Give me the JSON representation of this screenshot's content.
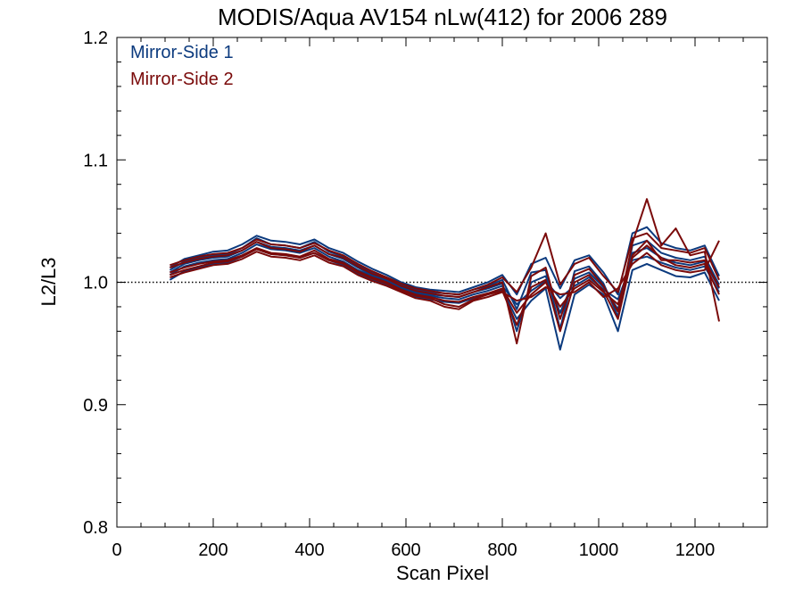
{
  "chart_data": {
    "type": "line",
    "title": "MODIS/Aqua AV154 nLw(412) for 2006 289",
    "xlabel": "Scan Pixel",
    "ylabel": "L2/L3",
    "xlim": [
      0,
      1350
    ],
    "ylim": [
      0.8,
      1.2
    ],
    "x_ticks": [
      0,
      200,
      400,
      600,
      800,
      1000,
      1200
    ],
    "x_tick_labels": [
      "0",
      "200",
      "400",
      "600",
      "800",
      "1000",
      "1200"
    ],
    "y_ticks": [
      0.8,
      0.9,
      1.0,
      1.1,
      1.2
    ],
    "y_tick_labels": [
      "0.8",
      "0.9",
      "1.0",
      "1.1",
      "1.2"
    ],
    "reference_line": 1.0,
    "grid": false,
    "legend_position": "top-left",
    "colors": {
      "mirror_side_1": "#0b3a7e",
      "mirror_side_2": "#7a0a0a"
    },
    "x": [
      110,
      140,
      170,
      200,
      230,
      260,
      290,
      320,
      350,
      380,
      410,
      440,
      470,
      500,
      530,
      560,
      590,
      620,
      650,
      680,
      710,
      740,
      770,
      800,
      830,
      860,
      890,
      920,
      950,
      980,
      1010,
      1040,
      1070,
      1100,
      1130,
      1160,
      1190,
      1220,
      1250
    ],
    "series": [
      {
        "name": "Mirror-Side 1",
        "side": 1,
        "values": [
          1.006,
          1.013,
          1.016,
          1.018,
          1.019,
          1.024,
          1.031,
          1.027,
          1.026,
          1.024,
          1.028,
          1.021,
          1.017,
          1.01,
          1.005,
          1.001,
          0.995,
          0.991,
          0.989,
          0.987,
          0.986,
          0.99,
          0.993,
          0.997,
          0.982,
          0.993,
          1.001,
          0.987,
          0.997,
          1.004,
          0.994,
          0.986,
          1.018,
          1.021,
          1.016,
          1.012,
          1.01,
          1.013,
          0.992
        ]
      },
      {
        "name": "Mirror-Side 1",
        "side": 1,
        "values": [
          1.01,
          1.017,
          1.02,
          1.022,
          1.023,
          1.028,
          1.036,
          1.031,
          1.03,
          1.028,
          1.033,
          1.025,
          1.021,
          1.014,
          1.008,
          1.004,
          0.998,
          0.994,
          0.992,
          0.991,
          0.99,
          0.994,
          0.997,
          1.002,
          0.978,
          1.008,
          1.01,
          0.962,
          1.009,
          1.013,
          0.999,
          0.972,
          1.03,
          1.034,
          1.024,
          1.02,
          1.018,
          1.021,
          0.998
        ]
      },
      {
        "name": "Mirror-Side 1",
        "side": 1,
        "values": [
          1.002,
          1.009,
          1.012,
          1.015,
          1.016,
          1.021,
          1.027,
          1.023,
          1.022,
          1.02,
          1.024,
          1.018,
          1.014,
          1.007,
          1.002,
          0.998,
          0.993,
          0.988,
          0.986,
          0.984,
          0.983,
          0.987,
          0.99,
          0.994,
          0.97,
          0.985,
          0.995,
          0.945,
          0.99,
          0.998,
          0.99,
          0.96,
          1.01,
          1.015,
          1.01,
          1.005,
          1.004,
          1.008,
          0.985
        ]
      },
      {
        "name": "Mirror-Side 1",
        "side": 1,
        "values": [
          1.012,
          1.019,
          1.022,
          1.025,
          1.026,
          1.031,
          1.038,
          1.034,
          1.033,
          1.031,
          1.035,
          1.028,
          1.024,
          1.017,
          1.011,
          1.006,
          1.0,
          0.996,
          0.994,
          0.993,
          0.992,
          0.996,
          1.0,
          1.006,
          0.99,
          1.015,
          1.02,
          0.995,
          1.018,
          1.022,
          1.008,
          0.99,
          1.04,
          1.045,
          1.032,
          1.028,
          1.026,
          1.03,
          1.005
        ]
      },
      {
        "name": "Mirror-Side 1",
        "side": 1,
        "values": [
          1.008,
          1.015,
          1.018,
          1.02,
          1.021,
          1.026,
          1.033,
          1.029,
          1.028,
          1.026,
          1.03,
          1.023,
          1.019,
          1.012,
          1.006,
          1.002,
          0.996,
          0.992,
          0.99,
          0.989,
          0.988,
          0.992,
          0.995,
          0.999,
          0.96,
          1.0,
          1.005,
          0.975,
          1.003,
          1.008,
          0.996,
          0.978,
          1.024,
          1.028,
          1.02,
          1.016,
          1.014,
          1.017,
          0.995
        ]
      },
      {
        "name": "Mirror-Side 2",
        "side": 2,
        "values": [
          1.008,
          1.012,
          1.015,
          1.017,
          1.018,
          1.022,
          1.028,
          1.024,
          1.023,
          1.021,
          1.026,
          1.019,
          1.016,
          1.009,
          1.004,
          1.0,
          0.994,
          0.99,
          0.988,
          0.985,
          0.984,
          0.988,
          0.991,
          0.995,
          0.975,
          0.99,
          1.0,
          0.98,
          0.995,
          1.002,
          0.992,
          0.982,
          1.02,
          1.03,
          1.02,
          1.014,
          1.012,
          1.015,
          0.99
        ]
      },
      {
        "name": "Mirror-Side 2",
        "side": 2,
        "values": [
          1.012,
          1.016,
          1.019,
          1.021,
          1.022,
          1.026,
          1.033,
          1.028,
          1.027,
          1.025,
          1.03,
          1.023,
          1.02,
          1.013,
          1.007,
          1.003,
          0.997,
          0.993,
          0.991,
          0.989,
          0.988,
          0.992,
          0.996,
          1.0,
          0.95,
          1.005,
          1.012,
          0.97,
          1.006,
          1.011,
          0.997,
          0.976,
          1.032,
          1.068,
          1.03,
          1.044,
          1.022,
          1.025,
          0.968
        ]
      },
      {
        "name": "Mirror-Side 2",
        "side": 2,
        "values": [
          1.004,
          1.008,
          1.011,
          1.014,
          1.015,
          1.019,
          1.025,
          1.021,
          1.02,
          1.018,
          1.022,
          1.016,
          1.013,
          1.006,
          1.001,
          0.997,
          0.992,
          0.987,
          0.985,
          0.98,
          0.978,
          0.985,
          0.988,
          0.992,
          0.985,
          0.988,
          0.996,
          0.99,
          0.992,
          1.0,
          0.988,
          0.995,
          1.015,
          1.024,
          1.014,
          1.01,
          1.008,
          1.01,
          1.034
        ]
      },
      {
        "name": "Mirror-Side 2",
        "side": 2,
        "values": [
          1.014,
          1.018,
          1.021,
          1.023,
          1.024,
          1.028,
          1.035,
          1.031,
          1.03,
          1.028,
          1.032,
          1.026,
          1.022,
          1.015,
          1.009,
          1.004,
          0.999,
          0.995,
          0.993,
          0.991,
          0.99,
          0.994,
          0.998,
          1.004,
          0.992,
          1.012,
          1.04,
          0.998,
          1.015,
          1.02,
          1.005,
          0.992,
          1.036,
          1.04,
          1.028,
          1.026,
          1.024,
          1.028,
          1.002
        ]
      },
      {
        "name": "Mirror-Side 2",
        "side": 2,
        "values": [
          1.006,
          1.01,
          1.013,
          1.016,
          1.017,
          1.021,
          1.027,
          1.023,
          1.022,
          1.02,
          1.024,
          1.018,
          1.015,
          1.008,
          1.003,
          0.999,
          0.993,
          0.989,
          0.987,
          0.982,
          0.98,
          0.986,
          0.99,
          0.993,
          0.965,
          0.996,
          1.002,
          0.96,
          1.0,
          1.006,
          0.993,
          0.97,
          1.022,
          1.034,
          1.018,
          1.018,
          1.016,
          1.018,
          0.996
        ]
      }
    ]
  }
}
